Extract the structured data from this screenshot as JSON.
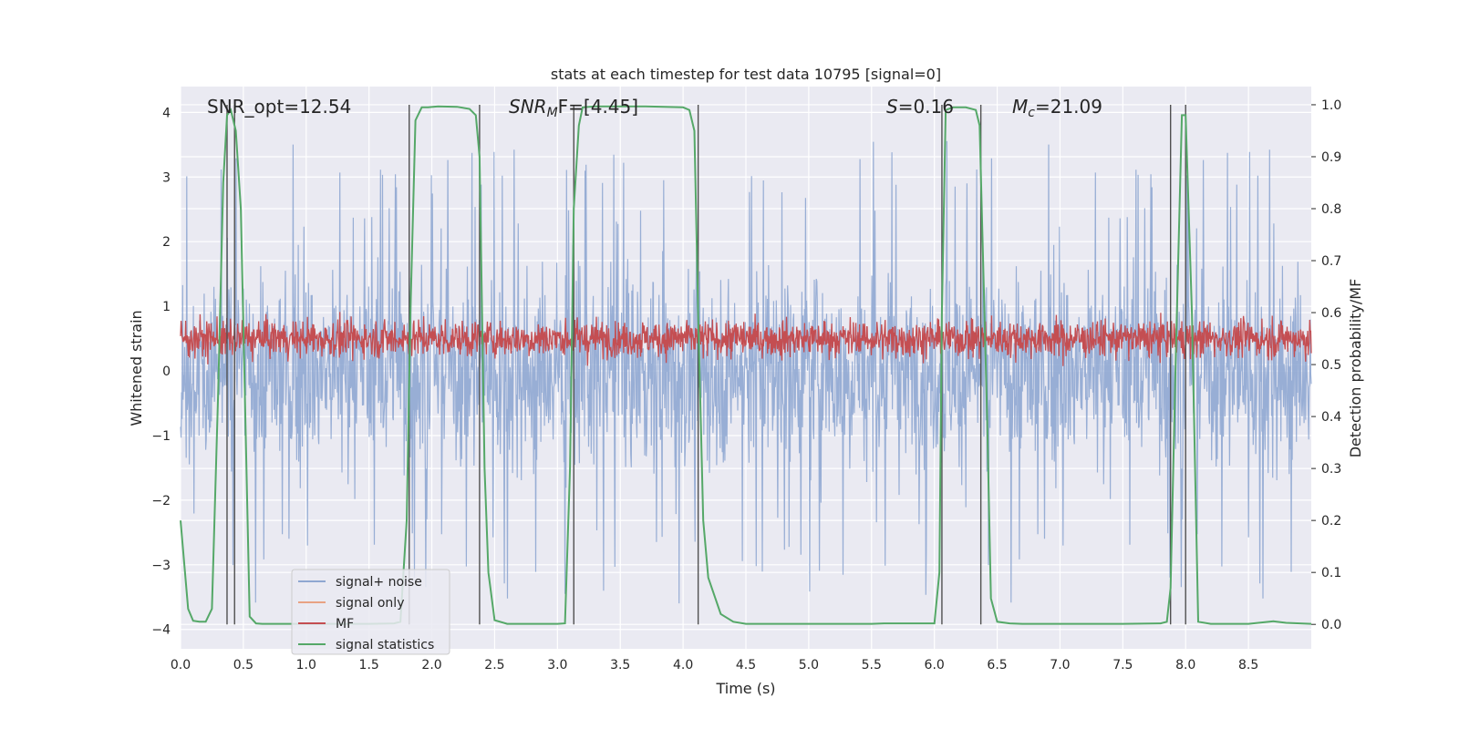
{
  "chart_data": {
    "type": "line",
    "title": "stats at each timestep for test data 10795 [signal=0]",
    "xlabel": "Time (s)",
    "ylabel": "Whitened strain",
    "ylabel_right": "Detection probability/MF",
    "xlim": [
      0,
      9.0
    ],
    "ylim": [
      -4.3,
      4.4
    ],
    "ylim_right": [
      -0.047,
      1.035
    ],
    "x_ticks": [
      "0.0",
      "0.5",
      "1.0",
      "1.5",
      "2.0",
      "2.5",
      "3.0",
      "3.5",
      "4.0",
      "4.5",
      "5.0",
      "5.5",
      "6.0",
      "6.5",
      "7.0",
      "7.5",
      "8.0",
      "8.5"
    ],
    "y_ticks_left": [
      "4",
      "3",
      "2",
      "1",
      "0",
      "−1",
      "−2",
      "−3",
      "−4"
    ],
    "y_ticks_right": [
      "1.0",
      "0.9",
      "0.8",
      "0.7",
      "0.6",
      "0.5",
      "0.4",
      "0.3",
      "0.2",
      "0.1",
      "0.0"
    ],
    "annotations": {
      "snr_opt": "SNR_opt=12.54",
      "snr_mf_pre": "SNR",
      "snr_mf_sub": "M",
      "snr_mf_post": "F=[4.45]",
      "s_sym": "S",
      "s_val": "=0.16",
      "mc_sym": "M",
      "mc_sub": "c",
      "mc_val": "=21.09"
    },
    "legend": {
      "placement": "lower-left",
      "entries": [
        {
          "label": "signal+ noise",
          "color": "#8fa7d1"
        },
        {
          "label": "signal only",
          "color": "#e8a283"
        },
        {
          "label": "MF",
          "color": "#c44e52"
        },
        {
          "label": "signal statistics",
          "color": "#55a868"
        }
      ]
    },
    "series": [
      {
        "name": "signal+ noise",
        "kind": "noise",
        "axis": "left",
        "color": "#8fa7d1",
        "core_range": [
          -1.6,
          1.6
        ],
        "peak_range": [
          -3.8,
          3.6
        ]
      },
      {
        "name": "signal only",
        "kind": "line",
        "axis": "left",
        "color": "#e8a283",
        "values": []
      },
      {
        "name": "MF",
        "kind": "noise",
        "axis": "right",
        "color": "#c44e52",
        "center": 0.55,
        "range": [
          0.495,
          0.62
        ]
      },
      {
        "name": "signal statistics",
        "kind": "line",
        "axis": "right",
        "color": "#55a868",
        "x": [
          0.0,
          0.06,
          0.1,
          0.15,
          0.2,
          0.25,
          0.3,
          0.34,
          0.37,
          0.4,
          0.44,
          0.48,
          0.55,
          0.6,
          0.65,
          0.7,
          1.0,
          1.5,
          1.7,
          1.75,
          1.8,
          1.83,
          1.87,
          1.92,
          1.97,
          2.05,
          2.2,
          2.3,
          2.35,
          2.38,
          2.42,
          2.45,
          2.5,
          2.6,
          2.7,
          3.0,
          3.06,
          3.1,
          3.13,
          3.17,
          3.2,
          3.3,
          3.7,
          4.0,
          4.05,
          4.09,
          4.12,
          4.16,
          4.2,
          4.3,
          4.4,
          4.5,
          5.0,
          5.5,
          5.6,
          6.0,
          6.04,
          6.06,
          6.09,
          6.15,
          6.25,
          6.33,
          6.36,
          6.42,
          6.45,
          6.5,
          6.6,
          6.7,
          7.0,
          7.5,
          7.8,
          7.85,
          7.88,
          7.92,
          7.97,
          8.0,
          8.05,
          8.1,
          8.2,
          8.5,
          8.7,
          8.8,
          9.0
        ],
        "values": [
          0.2,
          0.03,
          0.007,
          0.005,
          0.005,
          0.03,
          0.45,
          0.85,
          0.98,
          0.99,
          0.95,
          0.8,
          0.015,
          0.002,
          0.001,
          0.001,
          0.001,
          0.001,
          0.002,
          0.005,
          0.2,
          0.6,
          0.97,
          0.995,
          0.995,
          0.997,
          0.996,
          0.992,
          0.98,
          0.9,
          0.3,
          0.1,
          0.008,
          0.001,
          0.001,
          0.001,
          0.002,
          0.3,
          0.8,
          0.96,
          0.995,
          0.997,
          0.997,
          0.995,
          0.99,
          0.95,
          0.6,
          0.2,
          0.09,
          0.02,
          0.005,
          0.001,
          0.001,
          0.001,
          0.002,
          0.002,
          0.1,
          0.6,
          0.99,
          0.995,
          0.995,
          0.99,
          0.96,
          0.4,
          0.05,
          0.005,
          0.002,
          0.001,
          0.001,
          0.001,
          0.002,
          0.005,
          0.07,
          0.5,
          0.98,
          0.98,
          0.6,
          0.005,
          0.001,
          0.001,
          0.006,
          0.003,
          0.001
        ]
      }
    ],
    "vertical_markers": [
      0.37,
      0.43,
      1.82,
      2.38,
      3.13,
      4.12,
      6.06,
      6.37,
      7.88,
      8.0
    ]
  }
}
